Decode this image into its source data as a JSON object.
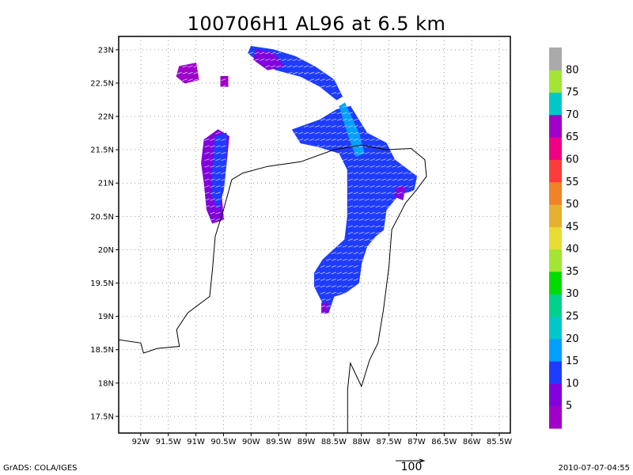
{
  "title": "100706H1 AL96 at 6.5 km",
  "footer": {
    "left": "GrADS: COLA/IGES",
    "right": "2010-07-07-04:55",
    "vector_reference": "100"
  },
  "chart_data": {
    "type": "heatmap",
    "title": "100706H1 AL96 at 6.5 km",
    "xlabel": "",
    "ylabel": "",
    "xlim": [
      -92.4,
      -85.3
    ],
    "ylim": [
      17.25,
      23.2
    ],
    "grid": true,
    "x_ticks": [
      {
        "value": -92,
        "label": "92W"
      },
      {
        "value": -91.5,
        "label": "91.5W"
      },
      {
        "value": -91,
        "label": "91W"
      },
      {
        "value": -90.5,
        "label": "90.5W"
      },
      {
        "value": -90,
        "label": "90W"
      },
      {
        "value": -89.5,
        "label": "89.5W"
      },
      {
        "value": -89,
        "label": "89W"
      },
      {
        "value": -88.5,
        "label": "88.5W"
      },
      {
        "value": -88,
        "label": "88W"
      },
      {
        "value": -87.5,
        "label": "87.5W"
      },
      {
        "value": -87,
        "label": "87W"
      },
      {
        "value": -86.5,
        "label": "86.5W"
      },
      {
        "value": -86,
        "label": "86W"
      },
      {
        "value": -85.5,
        "label": "85.5W"
      }
    ],
    "y_ticks": [
      {
        "value": 17.5,
        "label": "17.5N"
      },
      {
        "value": 18,
        "label": "18N"
      },
      {
        "value": 18.5,
        "label": "18.5N"
      },
      {
        "value": 19,
        "label": "19N"
      },
      {
        "value": 19.5,
        "label": "19.5N"
      },
      {
        "value": 20,
        "label": "20N"
      },
      {
        "value": 20.5,
        "label": "20.5N"
      },
      {
        "value": 21,
        "label": "21N"
      },
      {
        "value": 21.5,
        "label": "21.5N"
      },
      {
        "value": 22,
        "label": "22N"
      },
      {
        "value": 22.5,
        "label": "22.5N"
      },
      {
        "value": 23,
        "label": "23N"
      }
    ],
    "colorbar": [
      {
        "from": 0,
        "to": 5,
        "color": "#a000c8"
      },
      {
        "from": 5,
        "to": 10,
        "color": "#8200dc"
      },
      {
        "from": 10,
        "to": 15,
        "color": "#1e3cff"
      },
      {
        "from": 15,
        "to": 20,
        "color": "#00a0ff"
      },
      {
        "from": 20,
        "to": 25,
        "color": "#00c8c8"
      },
      {
        "from": 25,
        "to": 30,
        "color": "#00d28c"
      },
      {
        "from": 30,
        "to": 35,
        "color": "#00dc00"
      },
      {
        "from": 35,
        "to": 40,
        "color": "#a0e632"
      },
      {
        "from": 40,
        "to": 45,
        "color": "#e6dc32"
      },
      {
        "from": 45,
        "to": 50,
        "color": "#e6af2d"
      },
      {
        "from": 50,
        "to": 55,
        "color": "#f08228"
      },
      {
        "from": 55,
        "to": 60,
        "color": "#fa3c3c"
      },
      {
        "from": 60,
        "to": 65,
        "color": "#f00082"
      },
      {
        "from": 65,
        "to": 70,
        "color": "#a000c8"
      },
      {
        "from": 70,
        "to": 75,
        "color": "#00c8c8"
      },
      {
        "from": 75,
        "to": 80,
        "color": "#a0e632"
      },
      {
        "from": 80,
        "to": 85,
        "color": "#aaaaaa"
      }
    ],
    "colorbar_labels": [
      "5",
      "10",
      "15",
      "20",
      "25",
      "30",
      "35",
      "40",
      "45",
      "50",
      "55",
      "60",
      "65",
      "70",
      "75",
      "80"
    ],
    "wind_regions": [
      {
        "name": "northwest-cluster",
        "value": 5,
        "color": "#a000c8",
        "polygon": [
          [
            -91.3,
            22.75
          ],
          [
            -91.0,
            22.8
          ],
          [
            -90.95,
            22.55
          ],
          [
            -91.2,
            22.5
          ],
          [
            -91.35,
            22.6
          ]
        ]
      },
      {
        "name": "small-cluster",
        "value": 5,
        "color": "#a000c8",
        "polygon": [
          [
            -90.55,
            22.6
          ],
          [
            -90.42,
            22.6
          ],
          [
            -90.42,
            22.45
          ],
          [
            -90.55,
            22.45
          ]
        ]
      },
      {
        "name": "north-arc",
        "value": 12,
        "color": "#1e3cff",
        "polygon": [
          [
            -90.0,
            23.05
          ],
          [
            -89.6,
            23.0
          ],
          [
            -89.2,
            22.9
          ],
          [
            -88.85,
            22.75
          ],
          [
            -88.5,
            22.55
          ],
          [
            -88.35,
            22.3
          ],
          [
            -88.45,
            22.25
          ],
          [
            -88.75,
            22.45
          ],
          [
            -89.1,
            22.6
          ],
          [
            -89.55,
            22.7
          ],
          [
            -89.9,
            22.85
          ],
          [
            -90.05,
            22.95
          ]
        ]
      },
      {
        "name": "north-arc-core",
        "value": 7,
        "color": "#8200dc",
        "polygon": [
          [
            -89.9,
            23.0
          ],
          [
            -89.6,
            22.95
          ],
          [
            -89.4,
            22.75
          ],
          [
            -89.7,
            22.7
          ],
          [
            -89.95,
            22.85
          ]
        ]
      },
      {
        "name": "west-band",
        "value": 7,
        "color": "#8200dc",
        "polygon": [
          [
            -90.85,
            21.65
          ],
          [
            -90.6,
            21.8
          ],
          [
            -90.4,
            21.7
          ],
          [
            -90.45,
            21.3
          ],
          [
            -90.55,
            20.9
          ],
          [
            -90.5,
            20.45
          ],
          [
            -90.7,
            20.4
          ],
          [
            -90.8,
            20.6
          ],
          [
            -90.85,
            21.0
          ],
          [
            -90.9,
            21.3
          ]
        ]
      },
      {
        "name": "west-band-inner",
        "value": 12,
        "color": "#1e3cff",
        "polygon": [
          [
            -90.65,
            21.7
          ],
          [
            -90.45,
            21.75
          ],
          [
            -90.45,
            21.3
          ],
          [
            -90.5,
            20.9
          ],
          [
            -90.6,
            20.6
          ],
          [
            -90.7,
            20.8
          ],
          [
            -90.7,
            21.2
          ]
        ]
      },
      {
        "name": "main-band",
        "value": 12,
        "color": "#1e3cff",
        "polygon": [
          [
            -89.25,
            21.8
          ],
          [
            -88.75,
            21.95
          ],
          [
            -88.45,
            22.1
          ],
          [
            -88.2,
            22.15
          ],
          [
            -87.9,
            21.75
          ],
          [
            -87.55,
            21.6
          ],
          [
            -87.4,
            21.35
          ],
          [
            -87.0,
            21.1
          ],
          [
            -87.05,
            20.9
          ],
          [
            -87.35,
            20.8
          ],
          [
            -87.55,
            20.6
          ],
          [
            -87.6,
            20.3
          ],
          [
            -87.75,
            20.2
          ],
          [
            -87.9,
            20.05
          ],
          [
            -88.0,
            19.8
          ],
          [
            -88.05,
            19.5
          ],
          [
            -88.3,
            19.35
          ],
          [
            -88.5,
            19.3
          ],
          [
            -88.6,
            19.05
          ],
          [
            -88.7,
            19.2
          ],
          [
            -88.85,
            19.45
          ],
          [
            -88.85,
            19.65
          ],
          [
            -88.7,
            19.85
          ],
          [
            -88.5,
            20.0
          ],
          [
            -88.3,
            20.15
          ],
          [
            -88.25,
            20.5
          ],
          [
            -88.25,
            20.9
          ],
          [
            -88.25,
            21.2
          ],
          [
            -88.4,
            21.45
          ],
          [
            -88.8,
            21.55
          ],
          [
            -89.1,
            21.6
          ]
        ]
      },
      {
        "name": "main-band-core",
        "value": 17,
        "color": "#00a0ff",
        "polygon": [
          [
            -88.4,
            22.15
          ],
          [
            -88.3,
            22.2
          ],
          [
            -88.05,
            21.75
          ],
          [
            -87.95,
            21.45
          ],
          [
            -88.1,
            21.4
          ],
          [
            -88.25,
            21.75
          ]
        ]
      },
      {
        "name": "south-edge",
        "value": 7,
        "color": "#8200dc",
        "polygon": [
          [
            -88.72,
            19.2
          ],
          [
            -88.6,
            19.2
          ],
          [
            -88.6,
            19.05
          ],
          [
            -88.72,
            19.05
          ]
        ]
      },
      {
        "name": "east-edge",
        "value": 7,
        "color": "#8200dc",
        "polygon": [
          [
            -87.35,
            20.95
          ],
          [
            -87.2,
            20.95
          ],
          [
            -87.25,
            20.75
          ],
          [
            -87.4,
            20.8
          ]
        ]
      }
    ],
    "coastline": [
      [
        [
          -92.4,
          18.65
        ],
        [
          -92.0,
          18.6
        ],
        [
          -91.95,
          18.45
        ],
        [
          -91.7,
          18.52
        ],
        [
          -91.3,
          18.55
        ],
        [
          -91.35,
          18.8
        ],
        [
          -91.15,
          19.05
        ],
        [
          -90.75,
          19.3
        ],
        [
          -90.7,
          19.7
        ],
        [
          -90.65,
          20.2
        ],
        [
          -90.5,
          20.6
        ],
        [
          -90.35,
          21.05
        ],
        [
          -90.15,
          21.15
        ],
        [
          -89.7,
          21.25
        ],
        [
          -89.1,
          21.32
        ],
        [
          -88.5,
          21.5
        ],
        [
          -88.0,
          21.57
        ],
        [
          -87.55,
          21.5
        ],
        [
          -87.1,
          21.52
        ],
        [
          -86.85,
          21.35
        ],
        [
          -86.82,
          21.1
        ],
        [
          -87.0,
          20.9
        ],
        [
          -87.2,
          20.7
        ],
        [
          -87.45,
          20.3
        ],
        [
          -87.5,
          19.75
        ],
        [
          -87.6,
          19.1
        ],
        [
          -87.7,
          18.6
        ],
        [
          -87.85,
          18.35
        ],
        [
          -88.0,
          17.95
        ],
        [
          -88.2,
          18.3
        ],
        [
          -88.25,
          17.9
        ],
        [
          -88.25,
          17.25
        ]
      ]
    ],
    "wind_vectors": true
  }
}
